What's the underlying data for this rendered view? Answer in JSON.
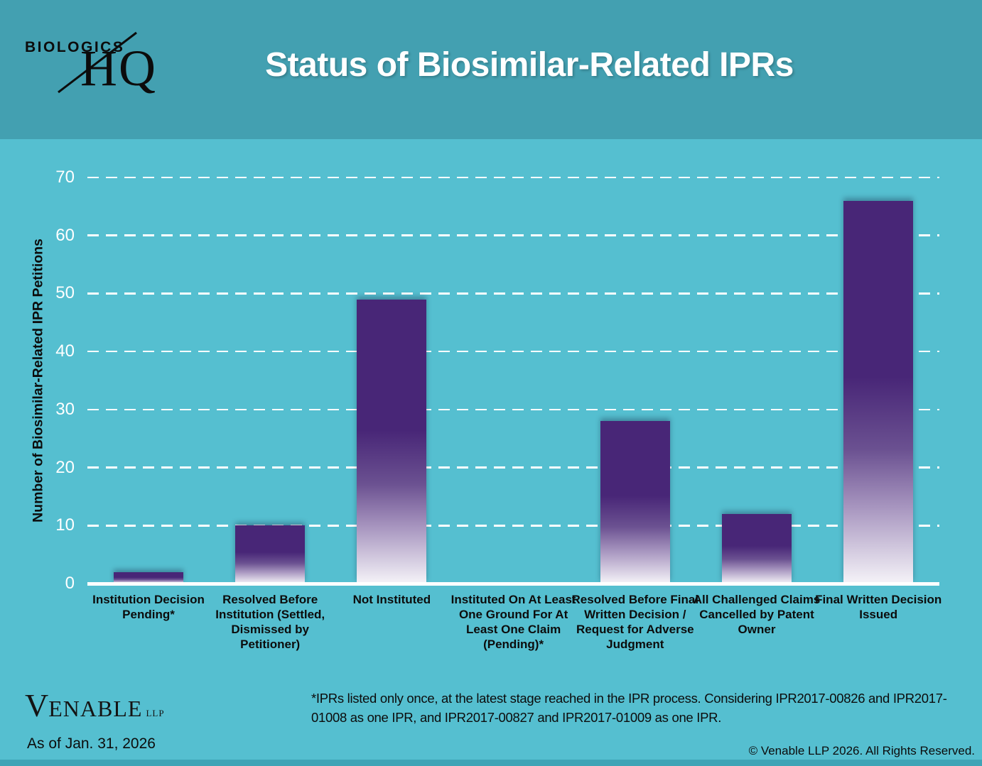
{
  "header": {
    "logo_top": "BIOLOGICS",
    "logo_bottom": "HQ",
    "title": "Status of Biosimilar-Related IPRs"
  },
  "chart_data": {
    "type": "bar",
    "title": "Status of Biosimilar-Related IPRs",
    "ylabel": "Number of Biosimilar-Related IPR Petitions",
    "xlabel": "",
    "ylim": [
      0,
      70
    ],
    "yticks": [
      0,
      10,
      20,
      30,
      40,
      50,
      60,
      70
    ],
    "grid": "horizontal white dashed lines every 10 units",
    "legend_position": "none",
    "categories": [
      "Institution Decision Pending*",
      "Resolved Before Institution (Settled, Dismissed by Petitioner)",
      "Not Instituted",
      "Instituted On At Least One Ground For At Least One Claim (Pending)*",
      "Resolved Before Final Written Decision / Request for Adverse Judgment",
      "All Challenged Claims Cancelled by Patent Owner",
      "Final Written Decision Issued"
    ],
    "values": [
      2,
      10,
      49,
      0,
      28,
      12,
      66
    ],
    "bar_gradient_top": "#482677",
    "bar_gradient_bottom": "#f5f3f8"
  },
  "footer": {
    "venable_v": "V",
    "venable_rest": "ENABLE",
    "venable_llp": "LLP",
    "as_of": "As of Jan. 31, 2026",
    "footnote": "*IPRs listed only once, at the latest stage reached in the IPR process.  Considering IPR2017-00826 and IPR2017-01008 as one IPR, and IPR2017-00827 and IPR2017-01009 as one IPR.",
    "copyright": "© Venable LLP 2026. All Rights Reserved."
  },
  "colors": {
    "header_band": "#43a0b1",
    "body_background": "#55bfd0",
    "bottom_strip": "#3fa4b6",
    "gridline": "#ffffff",
    "tick_text": "#ffffff",
    "label_text": "#0c0c0c",
    "bar_top": "#482677"
  }
}
